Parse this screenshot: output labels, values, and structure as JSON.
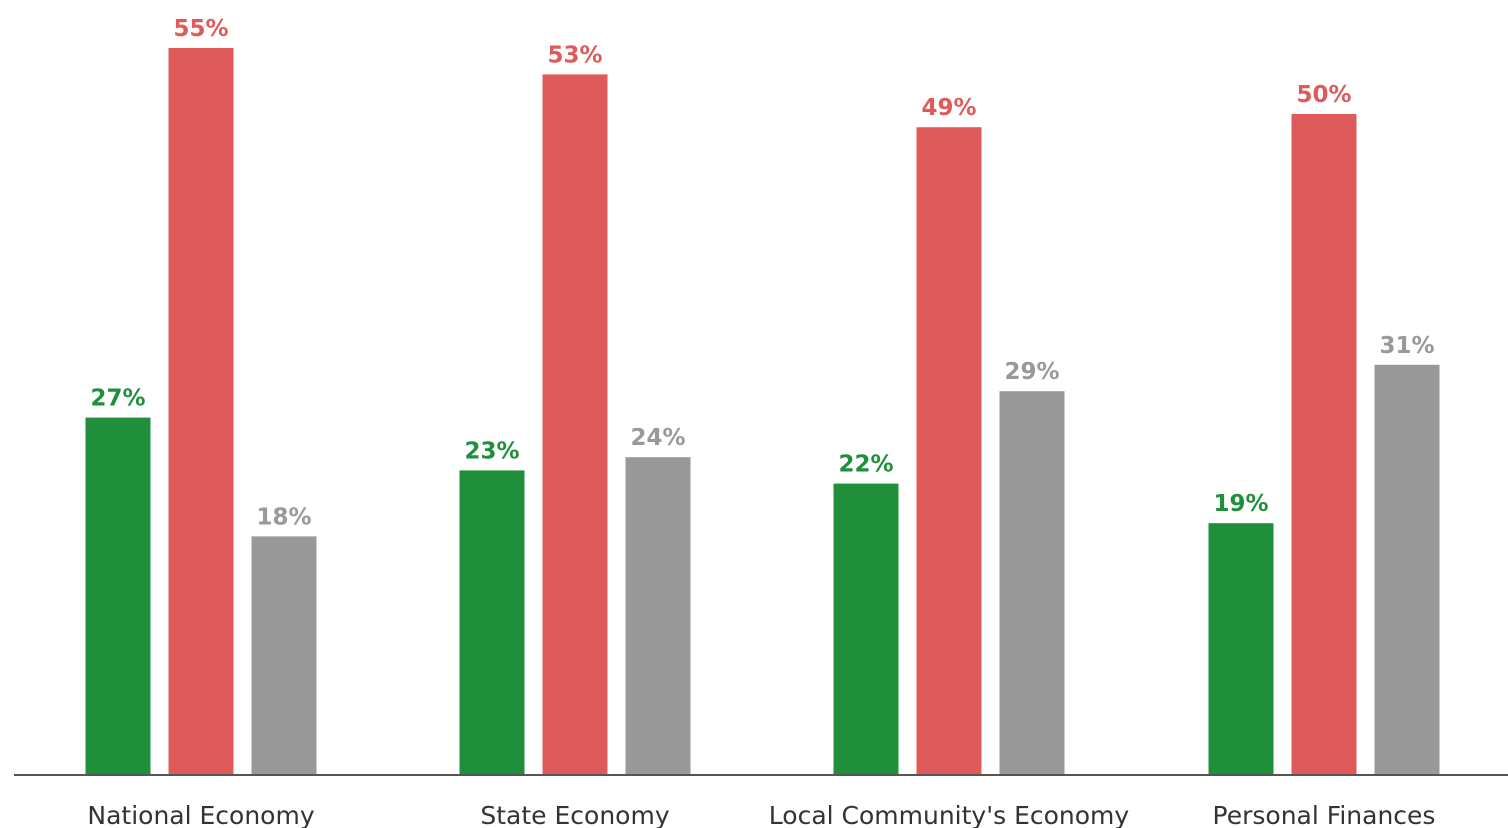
{
  "chart_data": {
    "type": "bar",
    "categories": [
      "National Economy",
      "State Economy",
      "Local Community's Economy",
      "Personal Finances"
    ],
    "series": [
      {
        "color": "#1f8f3c",
        "values": [
          27,
          23,
          22,
          19
        ]
      },
      {
        "color": "#df5b5b",
        "values": [
          55,
          53,
          49,
          50
        ]
      },
      {
        "color": "#999999",
        "values": [
          18,
          24,
          29,
          31
        ]
      }
    ],
    "value_suffix": "%",
    "ylim": [
      0,
      55
    ],
    "grid": false,
    "legend": "none",
    "title": "",
    "xlabel": "",
    "ylabel": ""
  }
}
